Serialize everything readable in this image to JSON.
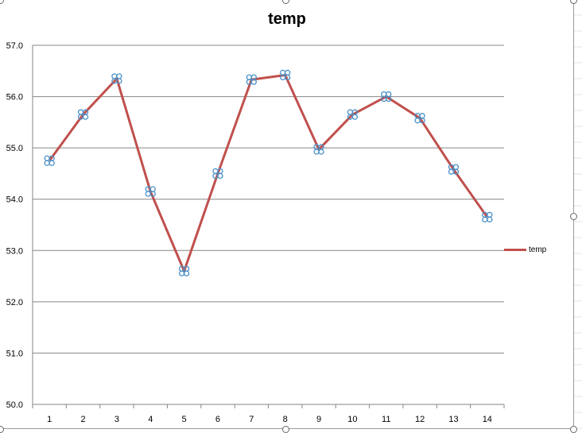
{
  "chart_data": {
    "type": "line",
    "title": "temp",
    "xlabel": "",
    "ylabel": "",
    "ylim": [
      50.0,
      57.0
    ],
    "y_ticks": [
      "50.0",
      "51.0",
      "52.0",
      "53.0",
      "54.0",
      "55.0",
      "56.0",
      "57.0"
    ],
    "categories": [
      "1",
      "2",
      "3",
      "4",
      "5",
      "6",
      "7",
      "8",
      "9",
      "10",
      "11",
      "12",
      "13",
      "14"
    ],
    "series": [
      {
        "name": "temp",
        "values": [
          54.75,
          55.65,
          56.35,
          54.15,
          52.6,
          54.5,
          56.33,
          56.42,
          54.97,
          55.65,
          56.0,
          55.58,
          54.58,
          53.65
        ],
        "color": "#c0504d",
        "marker_color": "#4a90c8"
      }
    ],
    "grid": "horizontal",
    "legend_position": "right"
  }
}
